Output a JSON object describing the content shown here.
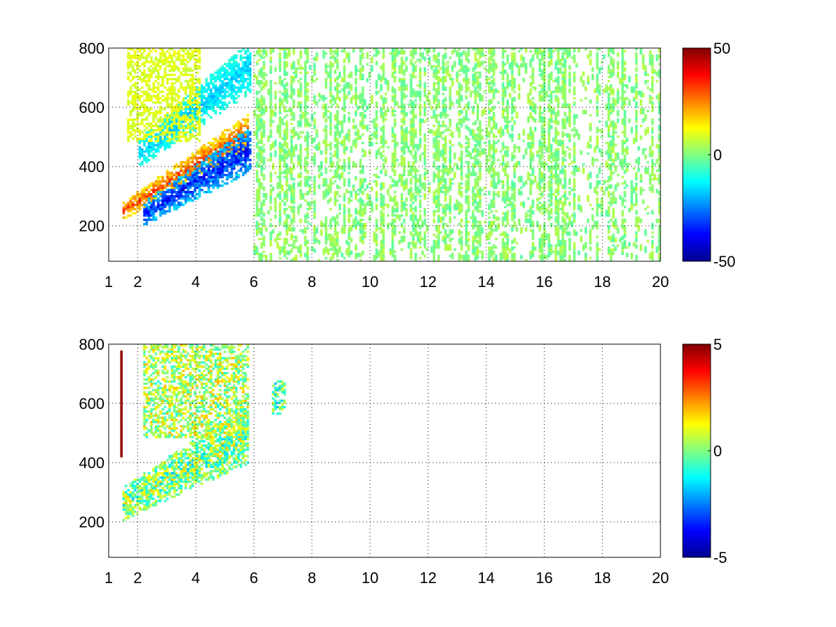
{
  "chart_data": [
    {
      "type": "heatmap",
      "title": "",
      "xlabel": "",
      "ylabel": "",
      "xlim": [
        1,
        20
      ],
      "ylim": [
        80,
        800
      ],
      "xticks": [
        1,
        2,
        4,
        6,
        8,
        10,
        12,
        14,
        16,
        18,
        20
      ],
      "yticks": [
        200,
        400,
        600,
        800
      ],
      "grid": true,
      "colormap": "jet",
      "clim": [
        -50,
        50
      ],
      "colorbar_ticks": [
        -50,
        0,
        50
      ],
      "features": [
        {
          "kind": "band",
          "x_range": [
            1.5,
            5.8
          ],
          "y_center_at_x_min": 250,
          "y_center_at_x_max": 520,
          "thickness": 90,
          "value": 38
        },
        {
          "kind": "band",
          "x_range": [
            2.2,
            5.9
          ],
          "y_center_at_x_min": 240,
          "y_center_at_x_max": 460,
          "thickness": 120,
          "value": -44
        },
        {
          "kind": "band",
          "x_range": [
            2.0,
            5.9
          ],
          "y_center_at_x_min": 440,
          "y_center_at_x_max": 740,
          "thickness": 140,
          "value": -22
        },
        {
          "kind": "blob",
          "x_range": [
            1.6,
            4.2
          ],
          "y_range": [
            480,
            800
          ],
          "value": 12
        },
        {
          "kind": "scatter",
          "x_range": [
            6,
            20
          ],
          "y_range": [
            80,
            800
          ],
          "density": 0.16,
          "value_range": [
            -4,
            6
          ]
        }
      ]
    },
    {
      "type": "heatmap",
      "title": "",
      "xlabel": "",
      "ylabel": "",
      "xlim": [
        1,
        20
      ],
      "ylim": [
        80,
        800
      ],
      "xticks": [
        1,
        2,
        4,
        6,
        8,
        10,
        12,
        14,
        16,
        18,
        20
      ],
      "yticks": [
        200,
        400,
        600,
        800
      ],
      "grid": true,
      "colormap": "jet",
      "clim": [
        -5,
        5
      ],
      "colorbar_ticks": [
        -5,
        0,
        5
      ],
      "features": [
        {
          "kind": "band",
          "x_range": [
            1.5,
            5.8
          ],
          "y_center_at_x_min": 260,
          "y_center_at_x_max": 500,
          "thickness": 160,
          "value_range": [
            -2,
            2
          ]
        },
        {
          "kind": "blob",
          "x_range": [
            2.2,
            5.8
          ],
          "y_range": [
            480,
            800
          ],
          "value_range": [
            -1,
            2
          ]
        },
        {
          "kind": "line",
          "x": 1.45,
          "y_range": [
            420,
            780
          ],
          "value": 4.8
        },
        {
          "kind": "blob",
          "x_range": [
            6.6,
            7.1
          ],
          "y_range": [
            560,
            680
          ],
          "value_range": [
            -2,
            1
          ]
        }
      ]
    }
  ]
}
